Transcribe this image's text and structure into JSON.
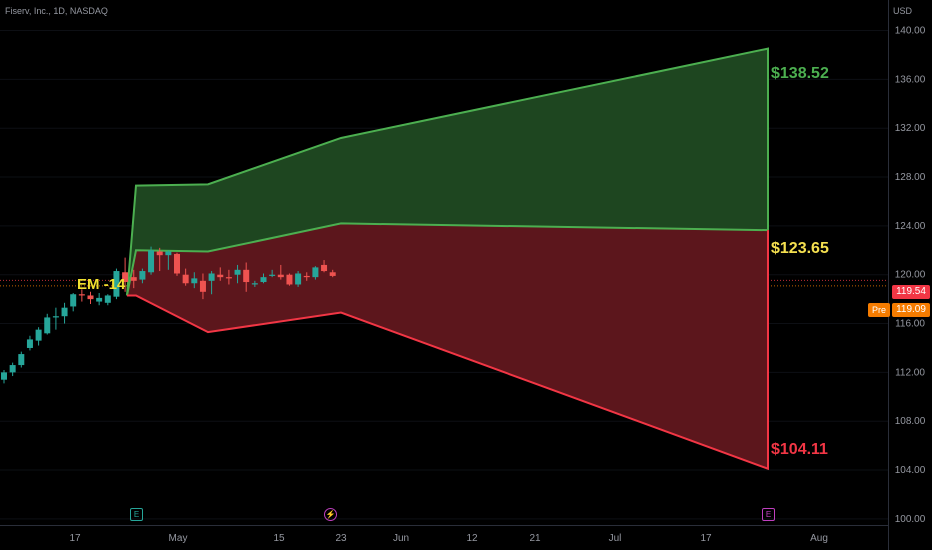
{
  "header": {
    "symbol_line": "Fiserv, Inc., 1D, NASDAQ",
    "currency": "USD"
  },
  "price_tags": {
    "last": "119.54",
    "pre_label": "Pre",
    "pre_value": "119.09"
  },
  "annotations": {
    "em_label": "EM -14",
    "upper": "$138.52",
    "middle": "$123.65",
    "lower": "$104.11"
  },
  "markers": {
    "earnings_1": "E",
    "dividend": "⚡",
    "earnings_2": "E"
  },
  "colors": {
    "background": "#000000",
    "up_candle": "#26a69a",
    "down_candle": "#ef5350",
    "upper_band_fill": "#1e4620",
    "upper_band_line": "#4caf50",
    "lower_band_fill": "#5c161c",
    "lower_band_line": "#f23645",
    "mid_label": "#f5e050",
    "price_tag": "#f23645",
    "pre_tag": "#f57c00"
  },
  "chart_data": {
    "type": "candlestick",
    "yaxis": {
      "ticks": [
        "100.00",
        "104.00",
        "108.00",
        "112.00",
        "116.00",
        "120.00",
        "124.00",
        "128.00",
        "132.00",
        "136.00",
        "140.00"
      ],
      "range": [
        99.5,
        142.5
      ]
    },
    "xaxis": {
      "tick_labels": [
        "17",
        "May",
        "15",
        "23",
        "Jun",
        "12",
        "21",
        "Jul",
        "17",
        "Aug"
      ]
    },
    "candles": [
      {
        "o": 111.4,
        "h": 112.2,
        "l": 111.1,
        "c": 112.0
      },
      {
        "o": 112.0,
        "h": 112.8,
        "l": 111.7,
        "c": 112.6
      },
      {
        "o": 112.6,
        "h": 113.7,
        "l": 112.4,
        "c": 113.5
      },
      {
        "o": 114.0,
        "h": 115.0,
        "l": 113.8,
        "c": 114.7
      },
      {
        "o": 114.6,
        "h": 115.7,
        "l": 114.2,
        "c": 115.5
      },
      {
        "o": 115.2,
        "h": 116.8,
        "l": 115.1,
        "c": 116.5
      },
      {
        "o": 116.5,
        "h": 117.3,
        "l": 115.5,
        "c": 116.6
      },
      {
        "o": 116.6,
        "h": 117.7,
        "l": 116.0,
        "c": 117.3
      },
      {
        "o": 117.4,
        "h": 118.5,
        "l": 117.0,
        "c": 118.4
      },
      {
        "o": 118.4,
        "h": 118.8,
        "l": 117.8,
        "c": 118.3
      },
      {
        "o": 118.3,
        "h": 118.6,
        "l": 117.6,
        "c": 118.0
      },
      {
        "o": 117.8,
        "h": 118.5,
        "l": 117.5,
        "c": 118.1
      },
      {
        "o": 117.7,
        "h": 118.4,
        "l": 117.5,
        "c": 118.3
      },
      {
        "o": 118.2,
        "h": 120.5,
        "l": 118.0,
        "c": 120.3
      },
      {
        "o": 120.2,
        "h": 121.4,
        "l": 118.6,
        "c": 119.4
      },
      {
        "o": 119.8,
        "h": 120.4,
        "l": 118.9,
        "c": 119.5
      },
      {
        "o": 119.6,
        "h": 120.5,
        "l": 119.3,
        "c": 120.3
      },
      {
        "o": 120.2,
        "h": 122.3,
        "l": 120.0,
        "c": 122.0
      },
      {
        "o": 121.9,
        "h": 122.2,
        "l": 120.3,
        "c": 121.6
      },
      {
        "o": 121.6,
        "h": 122.0,
        "l": 120.4,
        "c": 121.9
      },
      {
        "o": 121.7,
        "h": 121.8,
        "l": 119.9,
        "c": 120.1
      },
      {
        "o": 120.0,
        "h": 120.5,
        "l": 119.1,
        "c": 119.3
      },
      {
        "o": 119.3,
        "h": 120.2,
        "l": 118.9,
        "c": 119.7
      },
      {
        "o": 119.5,
        "h": 120.1,
        "l": 118.0,
        "c": 118.6
      },
      {
        "o": 119.5,
        "h": 120.3,
        "l": 118.4,
        "c": 120.1
      },
      {
        "o": 120.0,
        "h": 120.6,
        "l": 119.5,
        "c": 119.8
      },
      {
        "o": 119.8,
        "h": 120.4,
        "l": 119.2,
        "c": 119.7
      },
      {
        "o": 120.0,
        "h": 120.8,
        "l": 119.3,
        "c": 120.4
      },
      {
        "o": 120.4,
        "h": 121.0,
        "l": 118.6,
        "c": 119.4
      },
      {
        "o": 119.2,
        "h": 119.5,
        "l": 119.0,
        "c": 119.3
      },
      {
        "o": 119.4,
        "h": 120.1,
        "l": 119.3,
        "c": 119.8
      },
      {
        "o": 119.9,
        "h": 120.4,
        "l": 119.8,
        "c": 120.0
      },
      {
        "o": 120.0,
        "h": 120.8,
        "l": 119.6,
        "c": 119.8
      },
      {
        "o": 120.0,
        "h": 120.1,
        "l": 119.1,
        "c": 119.2
      },
      {
        "o": 119.2,
        "h": 120.3,
        "l": 119.0,
        "c": 120.1
      },
      {
        "o": 119.9,
        "h": 120.2,
        "l": 119.5,
        "c": 119.8
      },
      {
        "o": 119.8,
        "h": 120.7,
        "l": 119.6,
        "c": 120.6
      },
      {
        "o": 120.8,
        "h": 121.2,
        "l": 120.2,
        "c": 120.3
      },
      {
        "o": 120.2,
        "h": 120.4,
        "l": 119.8,
        "c": 119.9
      }
    ],
    "expected_move": {
      "anchor": 118.3,
      "upper": [
        127.3,
        127.4,
        131.2,
        138.52
      ],
      "middle": [
        122.0,
        121.9,
        124.2,
        123.65
      ],
      "lower": [
        118.3,
        115.3,
        116.9,
        104.11
      ]
    },
    "current_price_lines": [
      119.54,
      119.09
    ]
  }
}
